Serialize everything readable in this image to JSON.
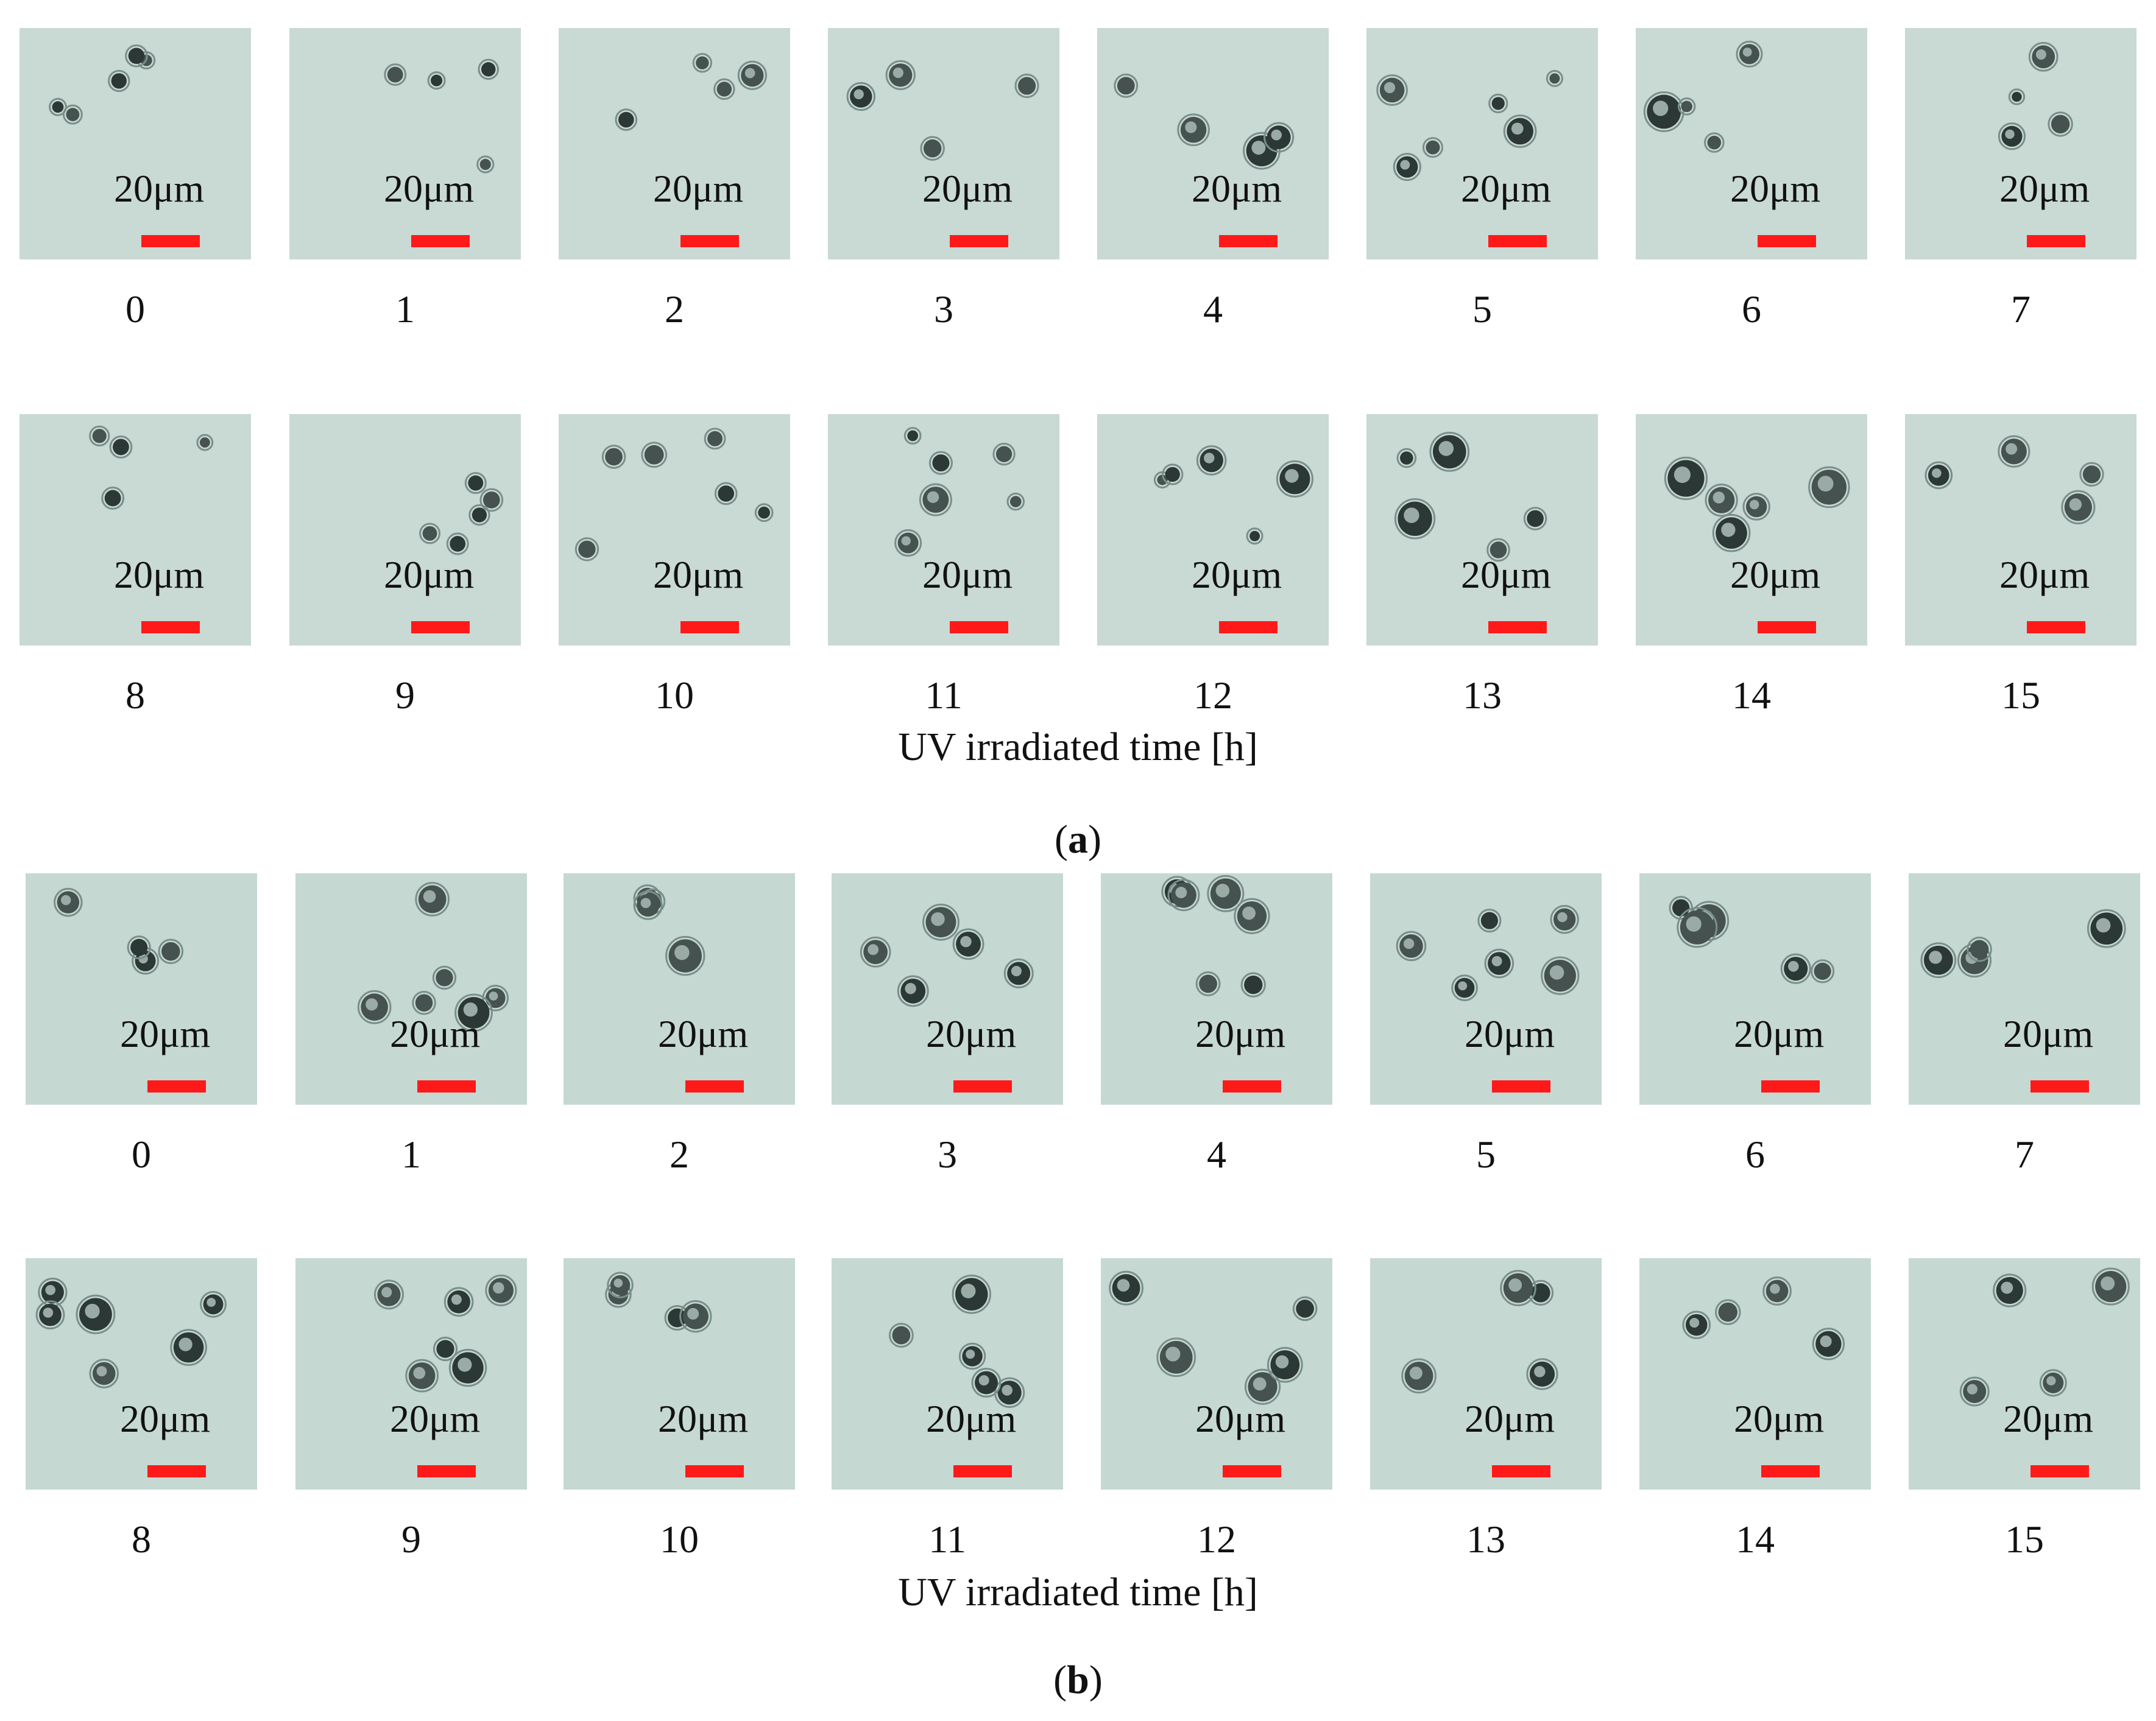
{
  "scale_bar_color": "#ff1a1a",
  "panels": [
    {
      "label_open": "(",
      "label_letter": "a",
      "label_close": ")",
      "axis_title": "UV irradiated time [h]",
      "bg_color": "#c9d9d4",
      "rows": [
        {
          "tiles": [
            {
              "time": "0",
              "scale": "20μm"
            },
            {
              "time": "1",
              "scale": "20μm"
            },
            {
              "time": "2",
              "scale": "20μm"
            },
            {
              "time": "3",
              "scale": "20μm"
            },
            {
              "time": "4",
              "scale": "20μm"
            },
            {
              "time": "5",
              "scale": "20μm"
            },
            {
              "time": "6",
              "scale": "20μm"
            },
            {
              "time": "7",
              "scale": "20μm"
            }
          ]
        },
        {
          "tiles": [
            {
              "time": "8",
              "scale": "20μm"
            },
            {
              "time": "9",
              "scale": "20μm"
            },
            {
              "time": "10",
              "scale": "20μm"
            },
            {
              "time": "11",
              "scale": "20μm"
            },
            {
              "time": "12",
              "scale": "20μm"
            },
            {
              "time": "13",
              "scale": "20μm"
            },
            {
              "time": "14",
              "scale": "20μm"
            },
            {
              "time": "15",
              "scale": "20μm"
            }
          ]
        }
      ]
    },
    {
      "label_open": "(",
      "label_letter": "b",
      "label_close": ")",
      "axis_title": "UV irradiated time [h]",
      "bg_color": "#c6d8d2",
      "rows": [
        {
          "tiles": [
            {
              "time": "0",
              "scale": "20μm"
            },
            {
              "time": "1",
              "scale": "20μm"
            },
            {
              "time": "2",
              "scale": "20μm"
            },
            {
              "time": "3",
              "scale": "20μm"
            },
            {
              "time": "4",
              "scale": "20μm"
            },
            {
              "time": "5",
              "scale": "20μm"
            },
            {
              "time": "6",
              "scale": "20μm"
            },
            {
              "time": "7",
              "scale": "20μm"
            }
          ]
        },
        {
          "tiles": [
            {
              "time": "8",
              "scale": "20μm"
            },
            {
              "time": "9",
              "scale": "20μm"
            },
            {
              "time": "10",
              "scale": "20μm"
            },
            {
              "time": "11",
              "scale": "20μm"
            },
            {
              "time": "12",
              "scale": "20μm"
            },
            {
              "time": "13",
              "scale": "20μm"
            },
            {
              "time": "14",
              "scale": "20μm"
            },
            {
              "time": "15",
              "scale": "20μm"
            }
          ]
        }
      ]
    }
  ]
}
